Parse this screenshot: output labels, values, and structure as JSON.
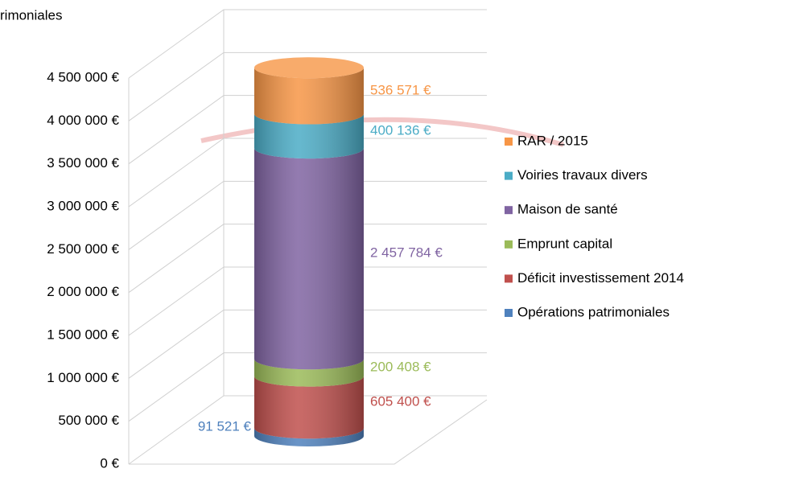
{
  "chart_data": {
    "type": "stacked-cylinder",
    "title": "rimoniales",
    "categories": [
      null
    ],
    "series": [
      {
        "name": "Opérations patrimoniales",
        "color": "#4f81bd",
        "values": [
          91521
        ],
        "value_labels": [
          "91 521 €"
        ]
      },
      {
        "name": "Déficit investissement 2014",
        "color": "#c0504d",
        "values": [
          605400
        ],
        "value_labels": [
          "605 400 €"
        ]
      },
      {
        "name": "Emprunt capital",
        "color": "#9bbb59",
        "values": [
          200408
        ],
        "value_labels": [
          "200 408 €"
        ]
      },
      {
        "name": "Maison de santé",
        "color": "#8064a2",
        "values": [
          2457784
        ],
        "value_labels": [
          "2 457 784 €"
        ]
      },
      {
        "name": "Voiries travaux divers",
        "color": "#4bacc6",
        "values": [
          400136
        ],
        "value_labels": [
          "400 136 €"
        ]
      },
      {
        "name": "RAR / 2015",
        "color": "#f79646",
        "values": [
          536571
        ],
        "value_labels": [
          "536 571 €"
        ]
      }
    ],
    "ylim": [
      0,
      4500000
    ],
    "yticks": [
      {
        "value": 0,
        "label": "0 €"
      },
      {
        "value": 500000,
        "label": "500 000 €"
      },
      {
        "value": 1000000,
        "label": "1 000 000 €"
      },
      {
        "value": 1500000,
        "label": "1 500 000 €"
      },
      {
        "value": 2000000,
        "label": "2 000 000 €"
      },
      {
        "value": 2500000,
        "label": "2 500 000 €"
      },
      {
        "value": 3000000,
        "label": "3 000 000 €"
      },
      {
        "value": 3500000,
        "label": "3 500 000 €"
      },
      {
        "value": 4000000,
        "label": "4 000 000 €"
      },
      {
        "value": 4500000,
        "label": "4 500 000 €"
      }
    ],
    "grid": true,
    "legend": "right"
  }
}
